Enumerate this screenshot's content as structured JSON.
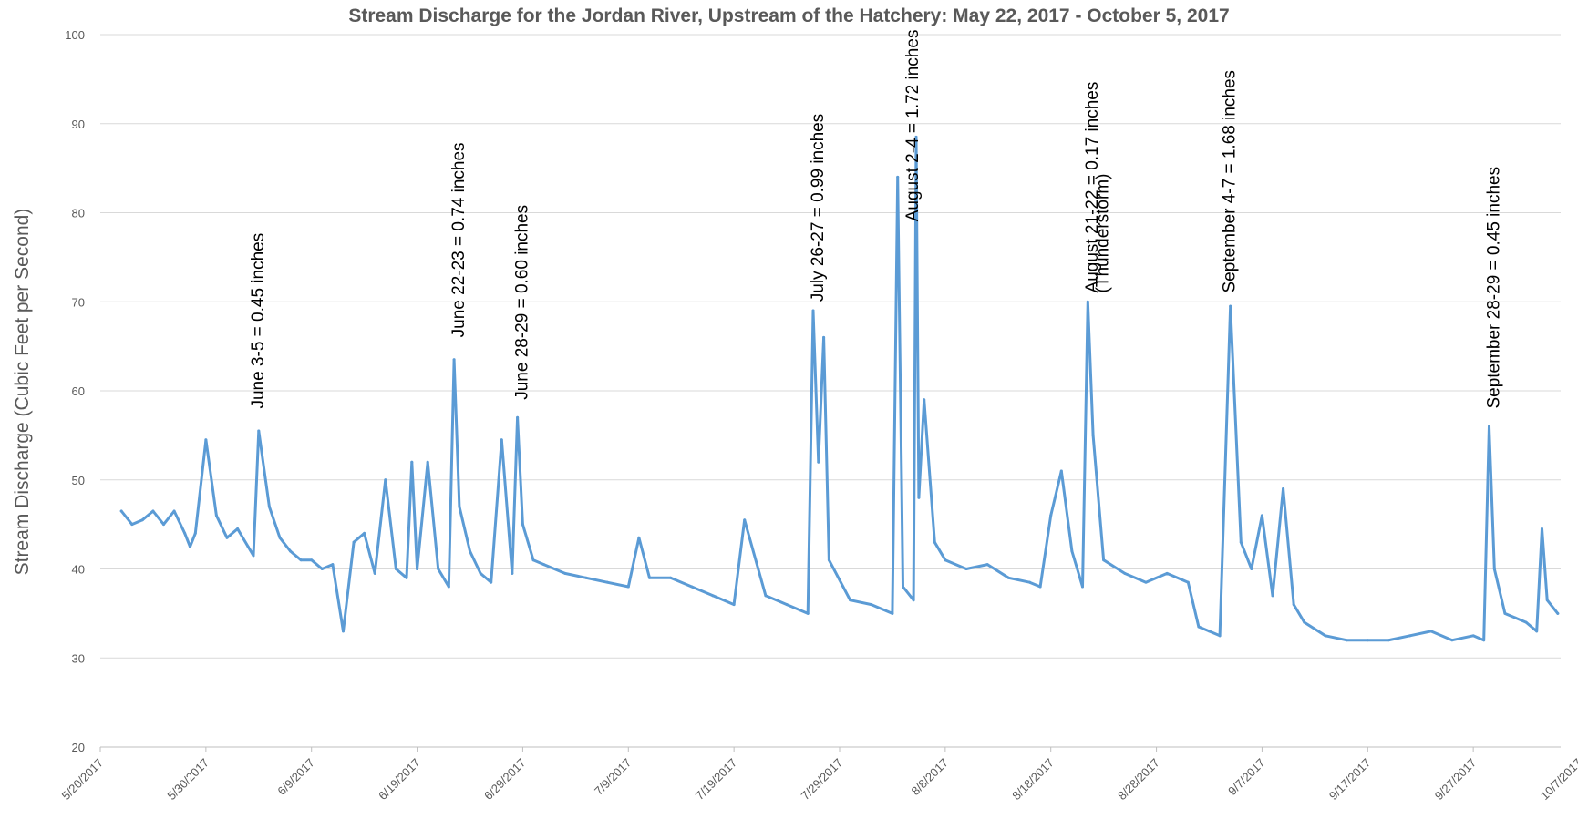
{
  "chart_data": {
    "type": "line",
    "title": "Stream Discharge for the Jordan River, Upstream of the Hatchery: May 22, 2017  - October 5, 2017",
    "xlabel": "",
    "ylabel": "Stream Discharge (Cubic Feet per Second)",
    "ylim": [
      20,
      100
    ],
    "y_ticks": [
      20,
      30,
      40,
      50,
      60,
      70,
      80,
      90,
      100
    ],
    "x_ticks": [
      "5/20/2017",
      "5/30/2017",
      "6/9/2017",
      "6/19/2017",
      "6/29/2017",
      "7/9/2017",
      "7/19/2017",
      "7/29/2017",
      "8/8/2017",
      "8/18/2017",
      "8/28/2017",
      "9/7/2017",
      "9/17/2017",
      "9/27/2017",
      "10/7/2017"
    ],
    "grid": true,
    "legend": "none",
    "colors": {
      "line": "#5b9bd5",
      "grid": "#d9d9d9",
      "text": "#595959"
    },
    "series": [
      {
        "x": [
          "5/22/2017",
          "5/23/2017",
          "5/24/2017",
          "5/25/2017",
          "5/26/2017",
          "5/27/2017",
          "5/28/2017",
          "5/28/2017 12:00",
          "5/29/2017",
          "5/30/2017",
          "5/31/2017",
          "6/1/2017",
          "6/2/2017",
          "6/3/2017",
          "6/3/2017 12:00",
          "6/4/2017",
          "6/5/2017",
          "6/6/2017",
          "6/7/2017",
          "6/8/2017",
          "6/9/2017",
          "6/10/2017",
          "6/11/2017",
          "6/12/2017",
          "6/13/2017",
          "6/14/2017",
          "6/15/2017",
          "6/16/2017",
          "6/17/2017",
          "6/18/2017",
          "6/18/2017 12:00",
          "6/19/2017",
          "6/20/2017",
          "6/21/2017",
          "6/22/2017",
          "6/22/2017 12:00",
          "6/23/2017",
          "6/24/2017",
          "6/25/2017",
          "6/26/2017",
          "6/27/2017",
          "6/28/2017",
          "6/28/2017 12:00",
          "6/29/2017",
          "6/30/2017",
          "7/1/2017",
          "7/3/2017",
          "7/5/2017",
          "7/7/2017",
          "7/9/2017",
          "7/10/2017",
          "7/11/2017",
          "7/13/2017",
          "7/15/2017",
          "7/17/2017",
          "7/19/2017",
          "7/20/2017",
          "7/22/2017",
          "7/24/2017",
          "7/26/2017",
          "7/26/2017 12:00",
          "7/27/2017",
          "7/27/2017 12:00",
          "7/28/2017",
          "7/30/2017",
          "8/1/2017",
          "8/3/2017",
          "8/3/2017 12:00",
          "8/4/2017",
          "8/5/2017",
          "8/5/2017 6:00",
          "8/5/2017 12:00",
          "8/6/2017",
          "8/7/2017",
          "8/8/2017",
          "8/10/2017",
          "8/12/2017",
          "8/14/2017",
          "8/16/2017",
          "8/17/2017",
          "8/18/2017",
          "8/19/2017",
          "8/20/2017",
          "8/21/2017",
          "8/21/2017 12:00",
          "8/22/2017",
          "8/23/2017",
          "8/25/2017",
          "8/27/2017",
          "8/29/2017",
          "8/31/2017",
          "9/1/2017",
          "9/2/2017",
          "9/3/2017",
          "9/4/2017",
          "9/5/2017",
          "9/6/2017",
          "9/7/2017",
          "9/8/2017",
          "9/9/2017",
          "9/10/2017",
          "9/11/2017",
          "9/13/2017",
          "9/15/2017",
          "9/17/2017",
          "9/19/2017",
          "9/21/2017",
          "9/23/2017",
          "9/25/2017",
          "9/27/2017",
          "9/28/2017",
          "9/28/2017 12:00",
          "9/29/2017",
          "9/30/2017",
          "10/1/2017",
          "10/2/2017",
          "10/3/2017",
          "10/3/2017 12:00",
          "10/4/2017",
          "10/5/2017"
        ],
        "values": [
          46.5,
          45.0,
          45.5,
          46.5,
          45.0,
          46.5,
          44.0,
          42.5,
          44.0,
          54.5,
          46.0,
          43.5,
          44.5,
          42.5,
          41.5,
          55.5,
          47.0,
          43.5,
          42.0,
          41.0,
          41.0,
          40.0,
          40.5,
          33.0,
          43.0,
          44.0,
          39.5,
          50.0,
          40.0,
          39.0,
          52.0,
          40.0,
          52.0,
          40.0,
          38.0,
          63.5,
          47.0,
          42.0,
          39.5,
          38.5,
          54.5,
          39.5,
          57.0,
          45.0,
          41.0,
          40.5,
          39.5,
          39.0,
          38.5,
          38.0,
          43.5,
          39.0,
          39.0,
          38.0,
          37.0,
          36.0,
          45.5,
          37.0,
          36.0,
          35.0,
          69.0,
          52.0,
          66.0,
          41.0,
          36.5,
          36.0,
          35.0,
          84.0,
          38.0,
          36.5,
          88.5,
          48.0,
          59.0,
          43.0,
          41.0,
          40.0,
          40.5,
          39.0,
          38.5,
          38.0,
          46.0,
          51.0,
          42.0,
          38.0,
          70.0,
          55.0,
          41.0,
          39.5,
          38.5,
          39.5,
          38.5,
          33.5,
          33.0,
          32.5,
          69.5,
          43.0,
          40.0,
          46.0,
          37.0,
          49.0,
          36.0,
          34.0,
          32.5,
          32.0,
          32.0,
          32.0,
          32.5,
          33.0,
          32.0,
          32.5,
          32.0,
          56.0,
          40.0,
          35.0,
          34.5,
          34.0,
          33.0,
          44.5,
          36.5,
          35.0
        ]
      }
    ],
    "annotations": [
      {
        "text": "June 3-5 = 0.45 inches",
        "date": "6/4/2017",
        "value": 58.0
      },
      {
        "text": "June 22-23 = 0.74 inches",
        "date": "6/23/2017",
        "value": 66.0
      },
      {
        "text": "June 28-29 = 0.60 inches",
        "date": "6/29/2017",
        "value": 59.0
      },
      {
        "text": "July 26-27 = 0.99 inches",
        "date": "7/27/2017",
        "value": 70.0
      },
      {
        "text": "August 2-4 = 1.72 inches",
        "date": "8/5/2017",
        "value": 79.0
      },
      {
        "text": "August 21-22 = 0.17 inches",
        "date": "8/22/2017",
        "value": 71.0
      },
      {
        "text": "(Thunderstorm)",
        "date": "8/23/2017",
        "value": 71.0
      },
      {
        "text": "September 4-7 = 1.68 inches",
        "date": "9/4/2017",
        "value": 71.0
      },
      {
        "text": "September 28-29 = 0.45 inches",
        "date": "9/29/2017",
        "value": 58.0
      }
    ]
  }
}
